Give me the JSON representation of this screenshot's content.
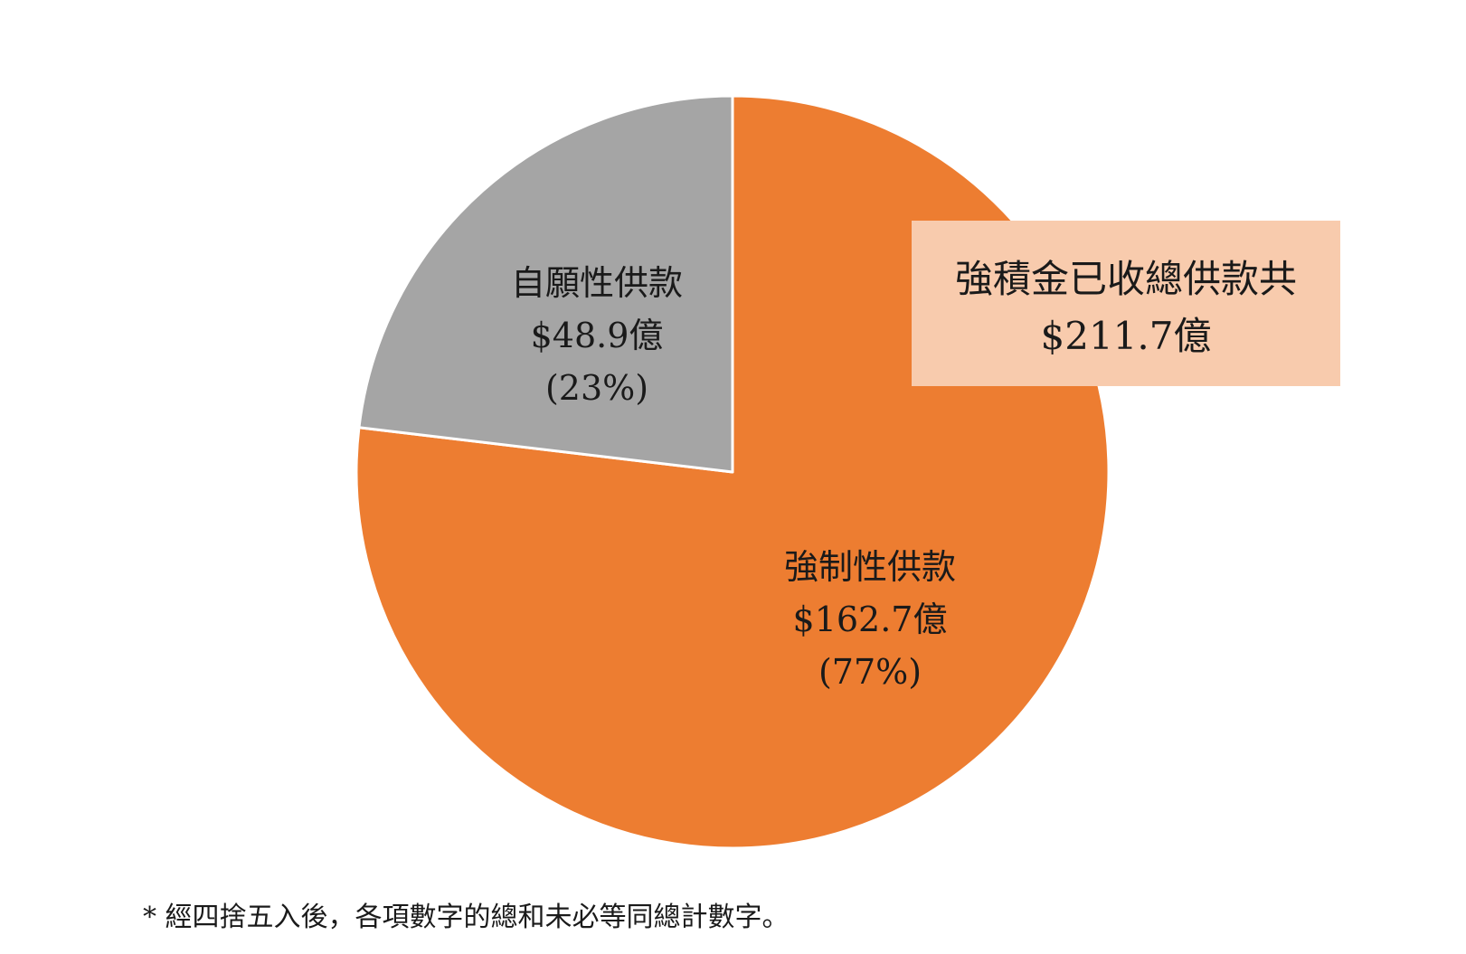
{
  "chart_data": {
    "type": "pie",
    "start_angle_deg": 0,
    "direction": "clockwise",
    "slices": [
      {
        "name": "強制性供款",
        "value": 162.7,
        "value_label": "$162.7億",
        "percent_label": "(77%)",
        "color": "#ED7D31"
      },
      {
        "name": "自願性供款",
        "value": 48.9,
        "value_label": "$48.9億",
        "percent_label": "(23%)",
        "color": "#A5A5A5"
      }
    ],
    "slice_border_color": "#ffffff",
    "callout": {
      "line1": "強積金已收總供款共",
      "line2": "$211.7億",
      "background": "#F8CBAD"
    }
  },
  "footnote": "* 經四捨五入後，各項數字的總和未必等同總計數字。"
}
